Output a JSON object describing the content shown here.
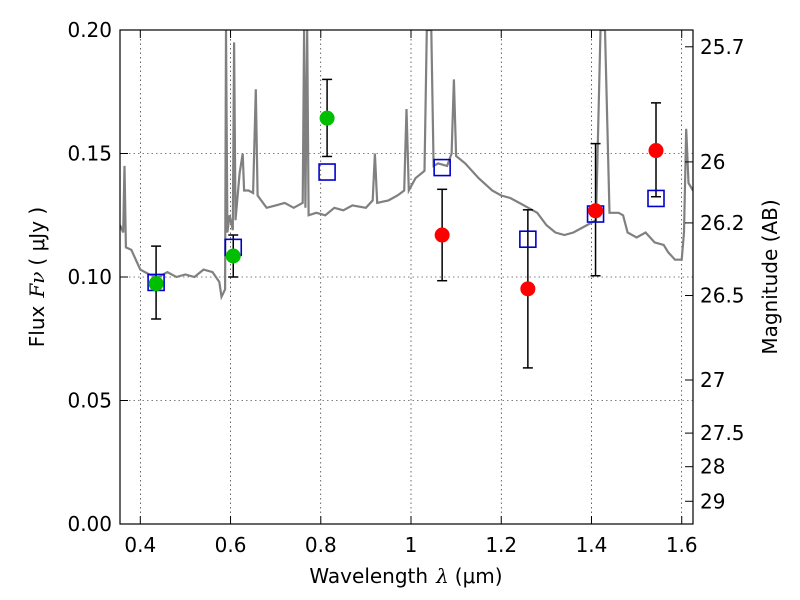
{
  "chart_data": {
    "type": "scatter",
    "xlabel": "Wavelength",
    "xlabel_symbol": "λ",
    "xlabel_unit": "(μm)",
    "ylabel": "Flux",
    "ylabel_symbol": "Fν",
    "ylabel_unit": "( μJy )",
    "ylabel_right": "Magnitude (AB)",
    "xlim": [
      0.355,
      1.625
    ],
    "ylim": [
      0.0,
      0.2
    ],
    "grid": true,
    "x_ticks": [
      0.4,
      0.6,
      0.8,
      1.0,
      1.2,
      1.4,
      1.6
    ],
    "x_tick_labels": [
      "0.4",
      "0.6",
      "0.8",
      "1",
      "1.2",
      "1.4",
      "1.6"
    ],
    "y_ticks": [
      0.0,
      0.05,
      0.1,
      0.15,
      0.2
    ],
    "y_tick_labels": [
      "0.00",
      "0.05",
      "0.10",
      "0.15",
      "0.20"
    ],
    "right_ticks": [
      {
        "label": "25.7",
        "flux": 0.1932
      },
      {
        "label": "26",
        "flux": 0.1466
      },
      {
        "label": "26.2",
        "flux": 0.1219
      },
      {
        "label": "26.5",
        "flux": 0.0925
      },
      {
        "label": "27",
        "flux": 0.0583
      },
      {
        "label": "27.5",
        "flux": 0.0368
      },
      {
        "label": "28",
        "flux": 0.0232
      },
      {
        "label": "29",
        "flux": 0.0092
      }
    ],
    "series": [
      {
        "name": "green detections",
        "color": "#00bf00",
        "marker": "circle",
        "points": [
          {
            "x": 0.435,
            "y": 0.0973,
            "err_lo": 0.083,
            "err_hi": 0.1125
          },
          {
            "x": 0.606,
            "y": 0.1085,
            "err_lo": 0.1,
            "err_hi": 0.117
          },
          {
            "x": 0.814,
            "y": 0.1643,
            "err_lo": 0.1488,
            "err_hi": 0.18
          }
        ]
      },
      {
        "name": "red detections",
        "color": "#ff0000",
        "marker": "circle",
        "points": [
          {
            "x": 1.069,
            "y": 0.117,
            "err_lo": 0.0985,
            "err_hi": 0.1355
          },
          {
            "x": 1.259,
            "y": 0.0952,
            "err_lo": 0.0632,
            "err_hi": 0.1272
          },
          {
            "x": 1.409,
            "y": 0.1268,
            "err_lo": 0.1005,
            "err_hi": 0.154
          },
          {
            "x": 1.543,
            "y": 0.1512,
            "err_lo": 0.1325,
            "err_hi": 0.1705
          }
        ]
      },
      {
        "name": "model photometry",
        "color": "#0000cc",
        "marker": "open-square",
        "points": [
          {
            "x": 0.435,
            "y": 0.0978
          },
          {
            "x": 0.606,
            "y": 0.112
          },
          {
            "x": 0.814,
            "y": 0.1425
          },
          {
            "x": 1.069,
            "y": 0.1443
          },
          {
            "x": 1.259,
            "y": 0.1153
          },
          {
            "x": 1.409,
            "y": 0.1255
          },
          {
            "x": 1.543,
            "y": 0.1318
          }
        ]
      },
      {
        "name": "model spectrum",
        "color": "#808080",
        "marker": "line",
        "points": [
          [
            0.355,
            0.121
          ],
          [
            0.362,
            0.118
          ],
          [
            0.365,
            0.145
          ],
          [
            0.368,
            0.112
          ],
          [
            0.38,
            0.111
          ],
          [
            0.4,
            0.103
          ],
          [
            0.42,
            0.101
          ],
          [
            0.44,
            0.1
          ],
          [
            0.46,
            0.102
          ],
          [
            0.48,
            0.1
          ],
          [
            0.5,
            0.101
          ],
          [
            0.52,
            0.1
          ],
          [
            0.54,
            0.103
          ],
          [
            0.56,
            0.102
          ],
          [
            0.575,
            0.098
          ],
          [
            0.58,
            0.092
          ],
          [
            0.588,
            0.095
          ],
          [
            0.59,
            0.2
          ],
          [
            0.593,
            0.118
          ],
          [
            0.598,
            0.125
          ],
          [
            0.605,
            0.119
          ],
          [
            0.608,
            0.195
          ],
          [
            0.611,
            0.123
          ],
          [
            0.62,
            0.142
          ],
          [
            0.627,
            0.15
          ],
          [
            0.63,
            0.135
          ],
          [
            0.64,
            0.135
          ],
          [
            0.65,
            0.134
          ],
          [
            0.656,
            0.176
          ],
          [
            0.66,
            0.133
          ],
          [
            0.68,
            0.128
          ],
          [
            0.7,
            0.129
          ],
          [
            0.72,
            0.13
          ],
          [
            0.74,
            0.128
          ],
          [
            0.76,
            0.13
          ],
          [
            0.763,
            0.2
          ],
          [
            0.766,
            0.128
          ],
          [
            0.77,
            0.2
          ],
          [
            0.773,
            0.125
          ],
          [
            0.79,
            0.126
          ],
          [
            0.81,
            0.125
          ],
          [
            0.83,
            0.128
          ],
          [
            0.85,
            0.127
          ],
          [
            0.87,
            0.129
          ],
          [
            0.9,
            0.128
          ],
          [
            0.915,
            0.131
          ],
          [
            0.92,
            0.15
          ],
          [
            0.925,
            0.13
          ],
          [
            0.95,
            0.131
          ],
          [
            0.97,
            0.133
          ],
          [
            0.985,
            0.135
          ],
          [
            0.99,
            0.168
          ],
          [
            0.995,
            0.135
          ],
          [
            1.01,
            0.14
          ],
          [
            1.03,
            0.143
          ],
          [
            1.035,
            0.2
          ],
          [
            1.045,
            0.2
          ],
          [
            1.05,
            0.145
          ],
          [
            1.06,
            0.146
          ],
          [
            1.08,
            0.145
          ],
          [
            1.09,
            0.15
          ],
          [
            1.095,
            0.18
          ],
          [
            1.1,
            0.149
          ],
          [
            1.12,
            0.146
          ],
          [
            1.15,
            0.14
          ],
          [
            1.18,
            0.135
          ],
          [
            1.2,
            0.133
          ],
          [
            1.22,
            0.132
          ],
          [
            1.24,
            0.13
          ],
          [
            1.26,
            0.128
          ],
          [
            1.28,
            0.126
          ],
          [
            1.3,
            0.121
          ],
          [
            1.32,
            0.118
          ],
          [
            1.34,
            0.117
          ],
          [
            1.36,
            0.118
          ],
          [
            1.39,
            0.121
          ],
          [
            1.41,
            0.123
          ],
          [
            1.42,
            0.2
          ],
          [
            1.43,
            0.2
          ],
          [
            1.44,
            0.126
          ],
          [
            1.46,
            0.126
          ],
          [
            1.47,
            0.125
          ],
          [
            1.48,
            0.118
          ],
          [
            1.5,
            0.116
          ],
          [
            1.52,
            0.118
          ],
          [
            1.54,
            0.114
          ],
          [
            1.56,
            0.113
          ],
          [
            1.57,
            0.11
          ],
          [
            1.585,
            0.107
          ],
          [
            1.6,
            0.107
          ],
          [
            1.605,
            0.118
          ],
          [
            1.61,
            0.16
          ],
          [
            1.615,
            0.138
          ],
          [
            1.625,
            0.135
          ]
        ]
      }
    ]
  }
}
